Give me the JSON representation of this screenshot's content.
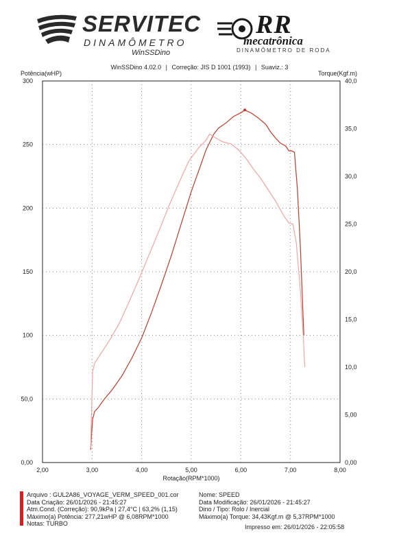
{
  "logos": {
    "left": {
      "name": "SERVITEC",
      "sub": "DINAMÔMETRO",
      "sub2": "WinSSDino"
    },
    "right": {
      "name": "RR",
      "sub": "mecatrônica",
      "tagline": "DINAMÔMETRO DE RODA"
    }
  },
  "header": {
    "software": "WinSSDino 4.02.0",
    "sep1": "|",
    "correction": "Correção: JIS D 1001 (1993)",
    "sep2": "|",
    "smooth": "Suaviz.: 3"
  },
  "chart_data": {
    "type": "line",
    "xlabel": "Rotação(RPM*1000)",
    "ylabel_left": "Potência(wHP)",
    "ylabel_right": "Torque(Kgf.m)",
    "xlim": [
      2.0,
      8.0
    ],
    "ylim_left": [
      0,
      300
    ],
    "ylim_right": [
      0,
      40
    ],
    "grid": true,
    "x_ticks": [
      "2,00",
      "3,00",
      "4,00",
      "5,00",
      "6,00",
      "7,00",
      "8,00"
    ],
    "y_left_ticks": [
      "0,00",
      "50,0",
      "100",
      "150",
      "200",
      "250",
      "300"
    ],
    "y_right_ticks": [
      "0,00",
      "5,00",
      "10,0",
      "15,0",
      "20,0",
      "25,0",
      "30,0",
      "35,0",
      "40,0"
    ],
    "series": [
      {
        "axis": "left",
        "color": "#c0392b",
        "points": [
          [
            2.97,
            10
          ],
          [
            2.99,
            22
          ],
          [
            3.01,
            34
          ],
          [
            3.05,
            40
          ],
          [
            3.12,
            43
          ],
          [
            3.25,
            50
          ],
          [
            3.4,
            57
          ],
          [
            3.6,
            68
          ],
          [
            3.8,
            82
          ],
          [
            4.0,
            98
          ],
          [
            4.2,
            118
          ],
          [
            4.4,
            140
          ],
          [
            4.6,
            163
          ],
          [
            4.8,
            188
          ],
          [
            5.0,
            213
          ],
          [
            5.2,
            235
          ],
          [
            5.3,
            246
          ],
          [
            5.45,
            258
          ],
          [
            5.55,
            263
          ],
          [
            5.7,
            267
          ],
          [
            5.85,
            272
          ],
          [
            6.0,
            275
          ],
          [
            6.08,
            277
          ],
          [
            6.2,
            275
          ],
          [
            6.35,
            271
          ],
          [
            6.5,
            266
          ],
          [
            6.6,
            260
          ],
          [
            6.7,
            255
          ],
          [
            6.8,
            251
          ],
          [
            6.9,
            249
          ],
          [
            6.97,
            245
          ],
          [
            7.03,
            245
          ],
          [
            7.08,
            244
          ],
          [
            7.14,
            215
          ],
          [
            7.2,
            170
          ],
          [
            7.27,
            100
          ]
        ]
      },
      {
        "axis": "right",
        "color": "#f0a5a5",
        "points": [
          [
            2.97,
            1.5
          ],
          [
            2.99,
            5.5
          ],
          [
            3.01,
            9.5
          ],
          [
            3.05,
            10.4
          ],
          [
            3.15,
            11.2
          ],
          [
            3.35,
            12.8
          ],
          [
            3.55,
            14.6
          ],
          [
            3.75,
            16.9
          ],
          [
            3.95,
            19.3
          ],
          [
            4.15,
            21.8
          ],
          [
            4.35,
            24.3
          ],
          [
            4.55,
            26.9
          ],
          [
            4.75,
            29.3
          ],
          [
            4.95,
            31.6
          ],
          [
            5.15,
            33.0
          ],
          [
            5.3,
            33.8
          ],
          [
            5.37,
            34.43
          ],
          [
            5.5,
            34.0
          ],
          [
            5.65,
            33.6
          ],
          [
            5.8,
            33.4
          ],
          [
            5.95,
            32.8
          ],
          [
            6.1,
            31.9
          ],
          [
            6.25,
            30.8
          ],
          [
            6.4,
            29.8
          ],
          [
            6.55,
            28.6
          ],
          [
            6.7,
            27.4
          ],
          [
            6.85,
            26.0
          ],
          [
            6.97,
            25.1
          ],
          [
            7.05,
            25.0
          ],
          [
            7.12,
            23.0
          ],
          [
            7.2,
            18.0
          ],
          [
            7.26,
            13.0
          ],
          [
            7.29,
            10.0
          ]
        ]
      }
    ],
    "max_marker": {
      "x": 6.08,
      "y": 277.21
    }
  },
  "info_left": {
    "arquivo": "Arquivo     : GUL2A86_VOYAGE_VERM_SPEED_001.cor",
    "data_criacao": "Data Criação:  26/01/2026 - 21:45:27",
    "atm_cond": "Atm.Cond. (Correção): 90,9kPa | 27,4°C | 63,2%  (1,15)",
    "max_potencia": "Máximo(a) Potência:  277,21wHP @ 6,08RPM*1000",
    "notas": "Notas:  TURBO"
  },
  "info_right": {
    "nome": "Nome:     SPEED",
    "data_modificacao": "Data Modificação:    26/01/2026 - 21:45:27",
    "dino_tipo": "Dino / Tipo:  Rolo / Inercial",
    "max_torque": "Máximo(a)  Torque:   34,43Kgf.m @ 5,37RPM*1000"
  },
  "footer": {
    "printed": "Impresso em: 26/01/2026 - 22:05:58"
  },
  "colors": {
    "accent_red": "#d81f1f",
    "power": "#c0392b",
    "torque": "#f0a5a5"
  }
}
